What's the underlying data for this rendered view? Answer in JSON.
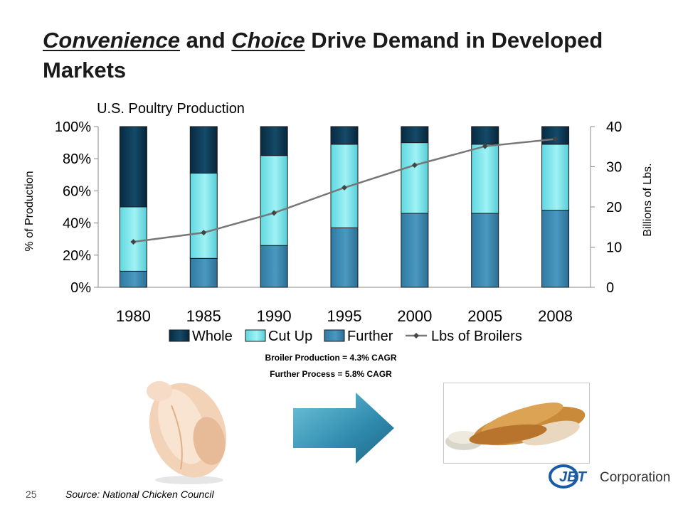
{
  "title": {
    "part1": "Convenience",
    "part2": " and ",
    "part3": "Choice",
    "part4": " Drive Demand in Developed Markets"
  },
  "chart_data": {
    "type": "bar",
    "title": "U.S. Poultry Production",
    "categories": [
      "1980",
      "1985",
      "1990",
      "1995",
      "2000",
      "2005",
      "2008"
    ],
    "ylabel": "% of Production",
    "y2label": "Billions of Lbs.",
    "ylim": [
      0,
      100
    ],
    "y2lim": [
      0,
      40
    ],
    "yticks": [
      "0%",
      "20%",
      "40%",
      "60%",
      "80%",
      "100%"
    ],
    "y2ticks": [
      "0",
      "10",
      "20",
      "30",
      "40"
    ],
    "stacked": true,
    "series": [
      {
        "name": "Further",
        "values": [
          10,
          18,
          26,
          37,
          46,
          46,
          48
        ],
        "color": "#3f8ab0"
      },
      {
        "name": "Cut Up",
        "values": [
          40,
          53,
          56,
          52,
          44,
          43,
          41
        ],
        "color": "#7fe9ee"
      },
      {
        "name": "Whole",
        "values": [
          50,
          29,
          18,
          11,
          10,
          11,
          11
        ],
        "color": "#0c3550"
      }
    ],
    "line_series": {
      "name": "Lbs of Broilers",
      "values": [
        11.3,
        13.6,
        18.5,
        24.8,
        30.4,
        35.1,
        36.9
      ],
      "axis": "right",
      "color": "#777777"
    },
    "legend": [
      "Whole",
      "Cut Up",
      "Further",
      "Lbs of Broilers"
    ],
    "legend_position": "bottom",
    "grid": false
  },
  "notes": {
    "cagr1": "Broiler Production = 4.3% CAGR",
    "cagr2": "Further Process = 5.8% CAGR"
  },
  "footer": {
    "page_number": "25",
    "source": "Source: National Chicken Council",
    "logo_text": "JBT",
    "logo_suffix": "Corporation"
  },
  "colors": {
    "logo_blue": "#1b5aa6"
  }
}
